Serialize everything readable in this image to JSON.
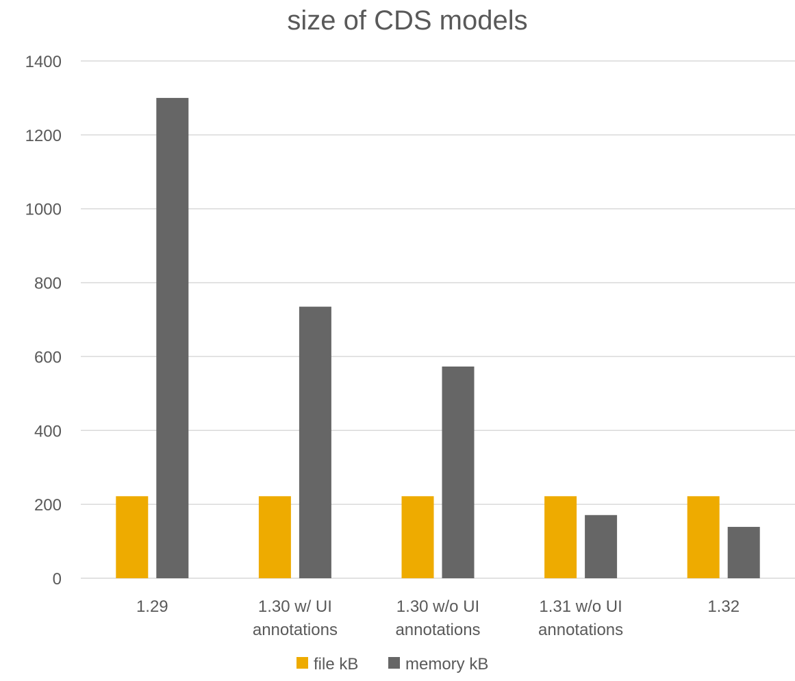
{
  "chart_data": {
    "type": "bar",
    "title": "size of CDS models",
    "xlabel": "",
    "ylabel": "",
    "ylim": [
      0,
      1400
    ],
    "yticks": [
      0,
      200,
      400,
      600,
      800,
      1000,
      1200,
      1400
    ],
    "grid": true,
    "legend_position": "bottom",
    "categories": [
      [
        "1.29"
      ],
      [
        "1.30 w/ UI",
        "annotations"
      ],
      [
        "1.30 w/o UI",
        "annotations"
      ],
      [
        "1.31 w/o UI",
        "annotations"
      ],
      [
        "1.32"
      ]
    ],
    "series": [
      {
        "name": "file kB",
        "color": "#EEAB00",
        "values": [
          222,
          222,
          222,
          222,
          222
        ]
      },
      {
        "name": "memory kB",
        "color": "#666666",
        "values": [
          1300,
          735,
          573,
          171,
          139
        ]
      }
    ]
  },
  "colors": {
    "grid": "#D9D9D9",
    "text": "#595959"
  }
}
